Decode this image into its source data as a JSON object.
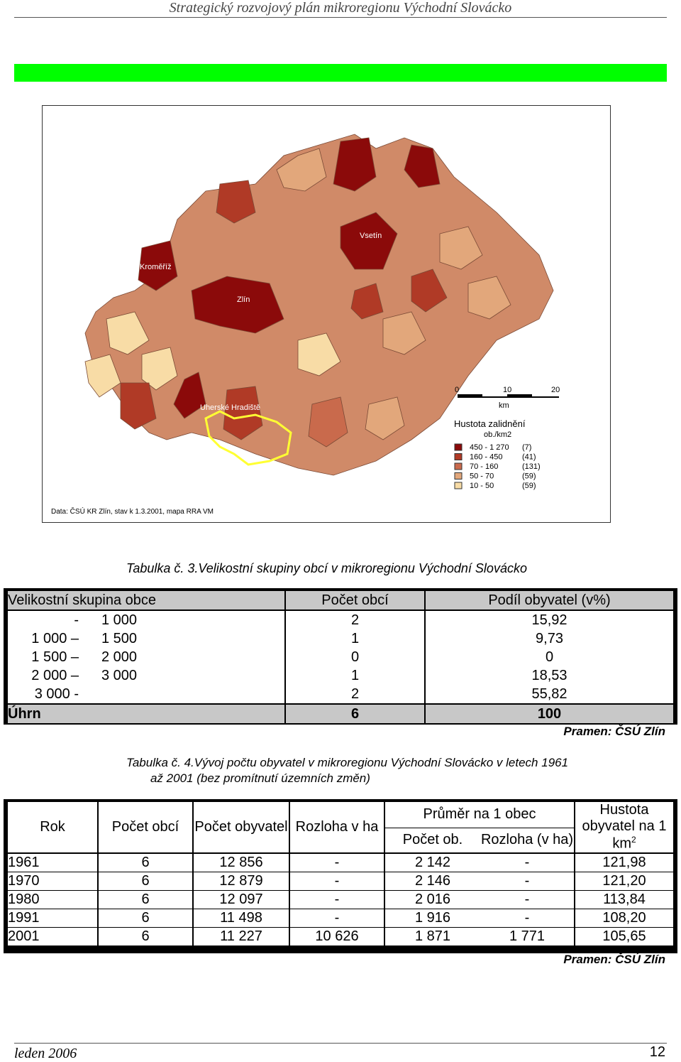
{
  "header": {
    "title": "Strategický rozvojový plán mikroregionu Východní Slovácko"
  },
  "map": {
    "town_labels": [
      "Kroměříž",
      "Vsetín",
      "Zlín",
      "Uherské Hradiště"
    ],
    "scale": {
      "ticks": [
        "0",
        "10",
        "20"
      ],
      "unit": "km"
    },
    "legend": {
      "title": "Hustota zalidnění",
      "subtitle": "ob./km2",
      "items": [
        {
          "range": "450 - 1 270",
          "count": "(7)",
          "color": "#8b0a0a"
        },
        {
          "range": "160 -   450",
          "count": "(41)",
          "color": "#b03a26"
        },
        {
          "range": "70 -   160",
          "count": "(131)",
          "color": "#c96a4c"
        },
        {
          "range": "50 -     70",
          "count": "(59)",
          "color": "#e2a77b"
        },
        {
          "range": "10 -     50",
          "count": "(59)",
          "color": "#f8dca6"
        }
      ]
    },
    "source_note": "Data: ČSÚ KR Zlín, stav k 1.3.2001, mapa RRA VM"
  },
  "table3": {
    "caption": "Tabulka č. 3.Velikostní skupiny obcí v mikroregionu Východní Slovácko",
    "headers": [
      "Velikostní skupina obce",
      "Počet obcí",
      "Podíl obyvatel (v%)"
    ],
    "rows": [
      {
        "group_from": "-",
        "group_to": "1 000",
        "count": "2",
        "share": "15,92"
      },
      {
        "group_from": "1 000 –",
        "group_to": "1 500",
        "count": "1",
        "share": "9,73"
      },
      {
        "group_from": "1 500 –",
        "group_to": "2 000",
        "count": "0",
        "share": "0"
      },
      {
        "group_from": "2 000 –",
        "group_to": "3 000",
        "count": "1",
        "share": "18,53"
      },
      {
        "group_from": "3 000 -",
        "group_to": "",
        "count": "2",
        "share": "55,82"
      }
    ],
    "total": {
      "label": "Úhrn",
      "count": "6",
      "share": "100"
    },
    "source": "Pramen: ČSÚ Zlín"
  },
  "table4": {
    "caption_line1": "Tabulka č. 4.Vývoj počtu obyvatel v mikroregionu Východní Slovácko v letech 1961",
    "caption_line2": "až 2001 (bez promítnutí územních změn)",
    "headers": {
      "rok": "Rok",
      "pocet_obci": "Počet obcí",
      "pocet_obyvatel": "Počet obyvatel",
      "rozloha": "Rozloha v ha",
      "prumer": "Průměr na 1 obec",
      "prumer_pocet": "Počet ob.",
      "prumer_rozloha": "Rozloha (v ha)",
      "hustota": "Hustota obyvatel na 1 km",
      "hustota_sup": "2"
    },
    "rows": [
      [
        "1961",
        "6",
        "12 856",
        "-",
        "2 142",
        "-",
        "121,98"
      ],
      [
        "1970",
        "6",
        "12 879",
        "-",
        "2 146",
        "-",
        "121,20"
      ],
      [
        "1980",
        "6",
        "12 097",
        "-",
        "2 016",
        "-",
        "113,84"
      ],
      [
        "1991",
        "6",
        "11 498",
        "-",
        "1 916",
        "-",
        "108,20"
      ],
      [
        "2001",
        "6",
        "11 227",
        "10 626",
        "1 871",
        "1 771",
        "105,65"
      ]
    ],
    "source": "Pramen: ČSÚ Zlín"
  },
  "footer": {
    "date": "leden 2006",
    "page": "12"
  }
}
